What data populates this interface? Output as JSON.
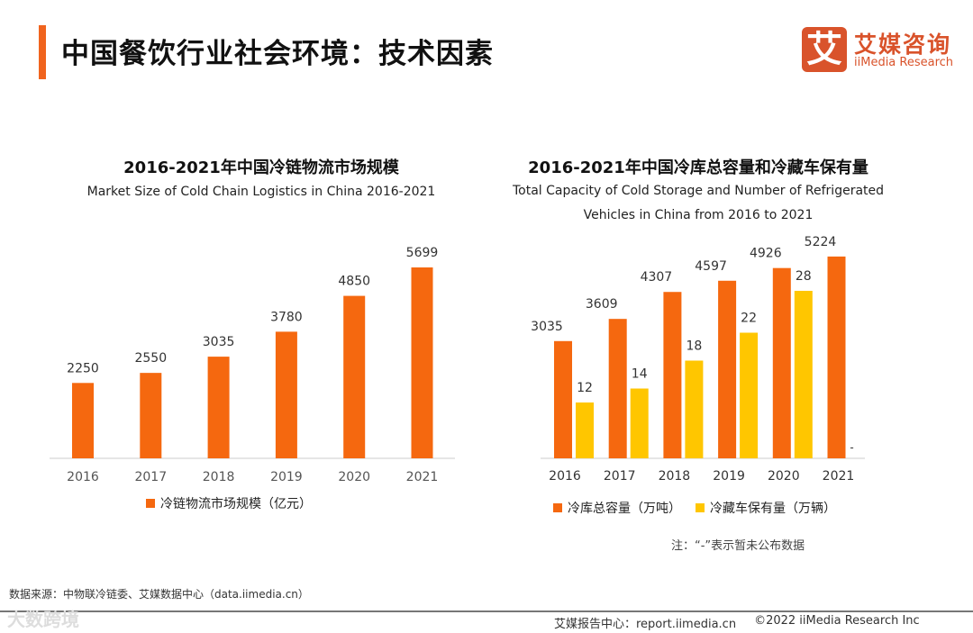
{
  "header": {
    "title": "中国餐饮行业社会环境：技术因素"
  },
  "logo": {
    "mark": "艾",
    "cn": "艾媒咨询",
    "en": "iiMedia Research"
  },
  "chart_data": [
    {
      "type": "bar",
      "title": "2016-2021年中国冷链物流市场规模",
      "subtitle": "Market Size of Cold Chain Logistics in China 2016-2021",
      "categories": [
        "2016",
        "2017",
        "2018",
        "2019",
        "2020",
        "2021"
      ],
      "series": [
        {
          "name": "冷链物流市场规模（亿元）",
          "color": "#f5680f",
          "values": [
            2250,
            2550,
            3035,
            3780,
            4850,
            5699
          ]
        }
      ],
      "legend": "bottom"
    },
    {
      "type": "bar",
      "title": "2016-2021年中国冷库总容量和冷藏车保有量",
      "subtitle_line1": "Total Capacity of Cold Storage and Number of Refrigerated",
      "subtitle_line2": "Vehicles in China from 2016 to 2021",
      "categories": [
        "2016",
        "2017",
        "2018",
        "2019",
        "2020",
        "2021"
      ],
      "series": [
        {
          "name": "冷库总容量（万吨）",
          "color": "#f5680f",
          "values": [
            3035,
            3609,
            4307,
            4597,
            4926,
            5224
          ]
        },
        {
          "name": "冷藏车保有量（万辆）",
          "color": "#ffc600",
          "values": [
            12,
            14,
            18,
            22,
            28,
            null
          ]
        }
      ],
      "missing_mark": "-",
      "legend": "bottom"
    }
  ],
  "note": "注：“-”表示暂未公布数据",
  "source": "数据来源：中物联冷链委、艾媒数据中心（data.iimedia.cn）",
  "watermark": "大数跨境",
  "footer": {
    "report": "艾媒报告中心：report.iimedia.cn",
    "copyright": "©2022  iiMedia Research  Inc"
  }
}
